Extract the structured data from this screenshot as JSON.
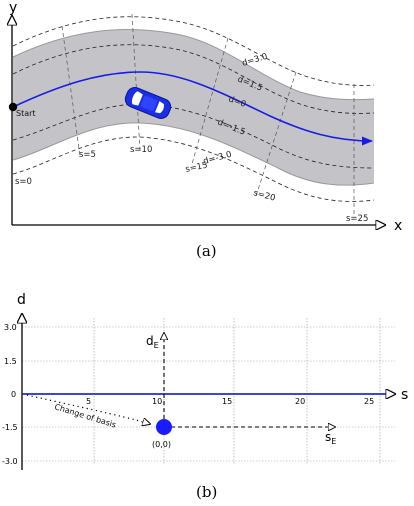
{
  "panel_a": {
    "axis_x": "x",
    "axis_y": "y",
    "start_label": "Start",
    "caption": "(a)",
    "d_labels": [
      "d=3.0",
      "d=1.5",
      "d=0",
      "d=-1.5",
      "d=-3.0"
    ],
    "s_labels": [
      "s=0",
      "s=5",
      "s=10",
      "s=15",
      "s=20",
      "s=25"
    ]
  },
  "panel_b": {
    "axis_x": "s",
    "axis_y": "d",
    "s_ticks": [
      "5",
      "10",
      "15",
      "20",
      "25"
    ],
    "d_ticks": [
      "3.0",
      "1.5",
      "0",
      "-1.5",
      "-3.0"
    ],
    "origin_label": "(0,0)",
    "annotation": "Change of basis",
    "s_e_main": "s",
    "s_e_sub": "E",
    "d_e_main": "d",
    "d_e_sub": "E",
    "caption": "(b)"
  },
  "colors": {
    "road": "#c4c4c8",
    "path": "#1a1ae6",
    "car": "#1a2ee8",
    "ego_point": "#1a1aff"
  }
}
